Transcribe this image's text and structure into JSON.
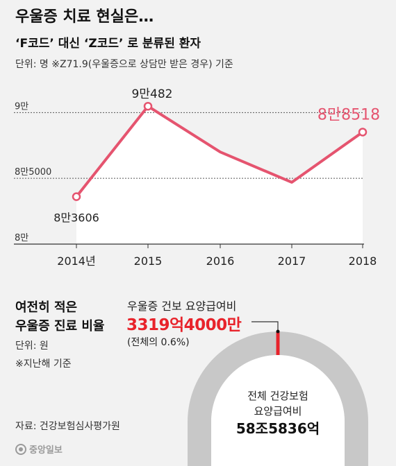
{
  "header": {
    "title": "우울증 치료 현실은…",
    "subtitle": "‘F코드’ 대신 ‘Z코드’ 로 분류된 환자",
    "unit_note": "단위: 명   ※Z71.9(우울증으로 상담만 받은 경우) 기준"
  },
  "chart_data": [
    {
      "type": "area",
      "categories": [
        "2014년",
        "2015",
        "2016",
        "2017",
        "2018"
      ],
      "values": [
        83606,
        90482,
        87000,
        84700,
        88518
      ],
      "data_labels": [
        "8만3606",
        "9만482",
        "",
        "",
        "8만8518"
      ],
      "ylim": [
        80000,
        91600
      ],
      "yticks": [
        {
          "value": 80000,
          "label": "8만"
        },
        {
          "value": 85000,
          "label": "8만5000"
        },
        {
          "value": 90000,
          "label": "9만"
        }
      ],
      "colors": {
        "line": "#e5546f",
        "area": "#ffffff",
        "highlight_label": "#e5546f"
      }
    },
    {
      "type": "pie",
      "title": "여전히 적은\n우울증 진료 비율",
      "unit_note": "단위: 원",
      "note": "※지난해 기준",
      "highlight": {
        "label": "우울증 건보 요양급여비",
        "value_text": "3319억4000만",
        "share_text": "(전체의 0.6%)",
        "value": 331940000000,
        "share": 0.006,
        "color": "#e8232b"
      },
      "total": {
        "label_line1": "전체 건강보험",
        "label_line2": "요양급여비",
        "value_text": "58조5836억",
        "value": 58583600000000,
        "ring_color": "#c8c8c8"
      }
    }
  ],
  "footer": {
    "source": "자료: 건강보험심사평가원",
    "logo_text": "중앙일보"
  }
}
